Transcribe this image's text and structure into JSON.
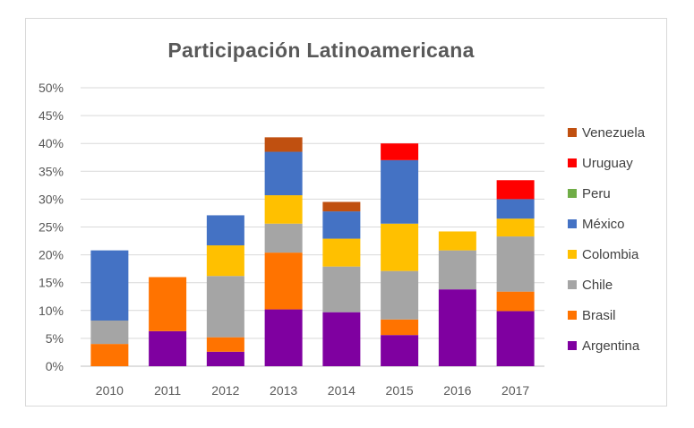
{
  "chart_data": {
    "type": "bar",
    "stacked": true,
    "title": "Participación Latinoamericana",
    "categories": [
      "2010",
      "2011",
      "2012",
      "2013",
      "2014",
      "2015",
      "2016",
      "2017"
    ],
    "y_ticks": [
      "0%",
      "5%",
      "10%",
      "15%",
      "20%",
      "25%",
      "30%",
      "35%",
      "40%",
      "45%",
      "50%"
    ],
    "ylim": [
      0,
      50
    ],
    "y_unit": "%",
    "grid": true,
    "legend_position": "right",
    "series": [
      {
        "name": "Argentina",
        "color": "#7f00a0",
        "values": [
          0,
          6.3,
          2.6,
          10.2,
          9.7,
          5.6,
          13.8,
          9.9
        ]
      },
      {
        "name": "Brasil",
        "color": "#ff7300",
        "values": [
          4.0,
          9.7,
          2.6,
          10.2,
          0,
          2.8,
          0,
          3.5
        ]
      },
      {
        "name": "Chile",
        "color": "#a5a5a5",
        "values": [
          4.2,
          0,
          11.0,
          5.2,
          8.2,
          8.7,
          7.0,
          9.9
        ]
      },
      {
        "name": "Colombia",
        "color": "#ffc000",
        "values": [
          0,
          0,
          5.5,
          5.1,
          5.0,
          8.5,
          3.4,
          3.2
        ]
      },
      {
        "name": "México",
        "color": "#4472c4",
        "values": [
          12.6,
          0,
          5.4,
          7.8,
          4.9,
          11.4,
          0,
          3.5
        ]
      },
      {
        "name": "Peru",
        "color": "#70ad47",
        "values": [
          0,
          0,
          0,
          0,
          0,
          0,
          0,
          0
        ]
      },
      {
        "name": "Uruguay",
        "color": "#ff0000",
        "values": [
          0,
          0,
          0,
          0,
          0,
          3.0,
          0,
          3.4
        ]
      },
      {
        "name": "Venezuela",
        "color": "#c05010",
        "values": [
          0,
          0,
          0,
          2.6,
          1.7,
          0,
          0,
          0
        ]
      }
    ],
    "legend_order": [
      "Venezuela",
      "Uruguay",
      "Peru",
      "México",
      "Colombia",
      "Chile",
      "Brasil",
      "Argentina"
    ]
  }
}
